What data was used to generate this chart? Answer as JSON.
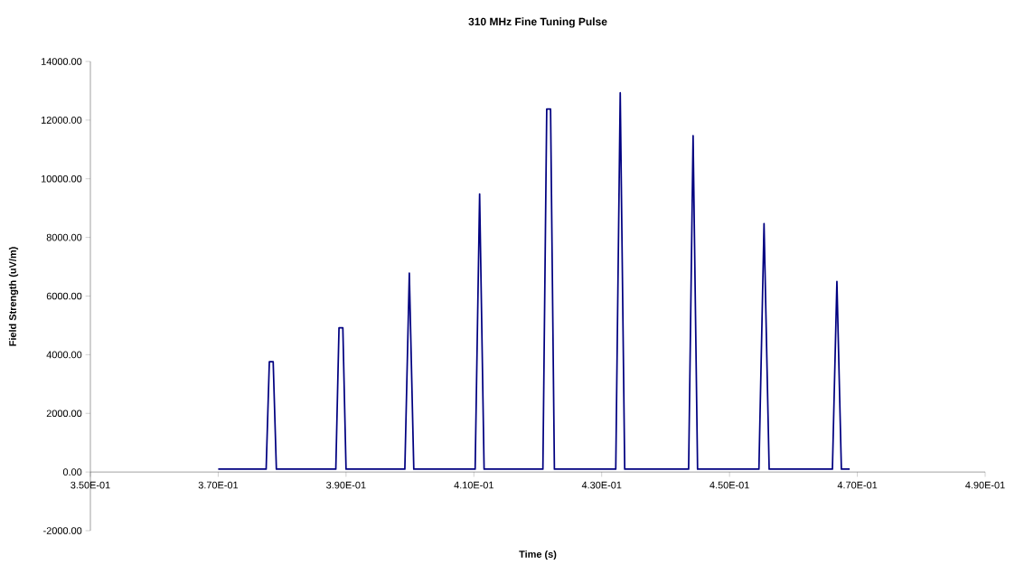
{
  "chart_data": {
    "type": "line",
    "title": "310 MHz Fine Tuning Pulse",
    "xlabel": "Time (s)",
    "ylabel": "Field Strength (uV/m)",
    "xlim": [
      0.35,
      0.49
    ],
    "ylim": [
      -2000,
      14000
    ],
    "xticks": [
      {
        "value": 0.35,
        "label": "3.50E-01"
      },
      {
        "value": 0.37,
        "label": "3.70E-01"
      },
      {
        "value": 0.39,
        "label": "3.90E-01"
      },
      {
        "value": 0.41,
        "label": "4.10E-01"
      },
      {
        "value": 0.43,
        "label": "4.30E-01"
      },
      {
        "value": 0.45,
        "label": "4.50E-01"
      },
      {
        "value": 0.47,
        "label": "4.70E-01"
      },
      {
        "value": 0.49,
        "label": "4.90E-01"
      }
    ],
    "yticks": [
      {
        "value": -2000,
        "label": "-2000.00"
      },
      {
        "value": 0,
        "label": "0.00"
      },
      {
        "value": 2000,
        "label": "2000.00"
      },
      {
        "value": 4000,
        "label": "4000.00"
      },
      {
        "value": 6000,
        "label": "6000.00"
      },
      {
        "value": 8000,
        "label": "8000.00"
      },
      {
        "value": 10000,
        "label": "10000.00"
      },
      {
        "value": 12000,
        "label": "12000.00"
      },
      {
        "value": 14000,
        "label": "14000.00"
      }
    ],
    "marker": "none",
    "line_style": "solid",
    "series": [
      {
        "color": "#000080",
        "x": [
          0.37,
          0.373,
          0.3775,
          0.378,
          0.3786,
          0.3791,
          0.384,
          0.3884,
          0.3889,
          0.3895,
          0.39,
          0.3945,
          0.3992,
          0.3999,
          0.4006,
          0.4055,
          0.4102,
          0.4109,
          0.4116,
          0.416,
          0.4208,
          0.4214,
          0.422,
          0.4226,
          0.427,
          0.4322,
          0.4329,
          0.4336,
          0.4385,
          0.4436,
          0.4443,
          0.445,
          0.45,
          0.4546,
          0.4554,
          0.4562,
          0.461,
          0.4661,
          0.4668,
          0.4675,
          0.4688
        ],
        "values": [
          100,
          100,
          100,
          3760,
          3760,
          100,
          100,
          100,
          4920,
          4920,
          100,
          100,
          100,
          6780,
          100,
          100,
          100,
          9480,
          100,
          100,
          100,
          12380,
          12380,
          100,
          100,
          100,
          12930,
          100,
          100,
          100,
          11470,
          100,
          100,
          100,
          8470,
          100,
          100,
          100,
          6500,
          100,
          100
        ]
      }
    ]
  }
}
